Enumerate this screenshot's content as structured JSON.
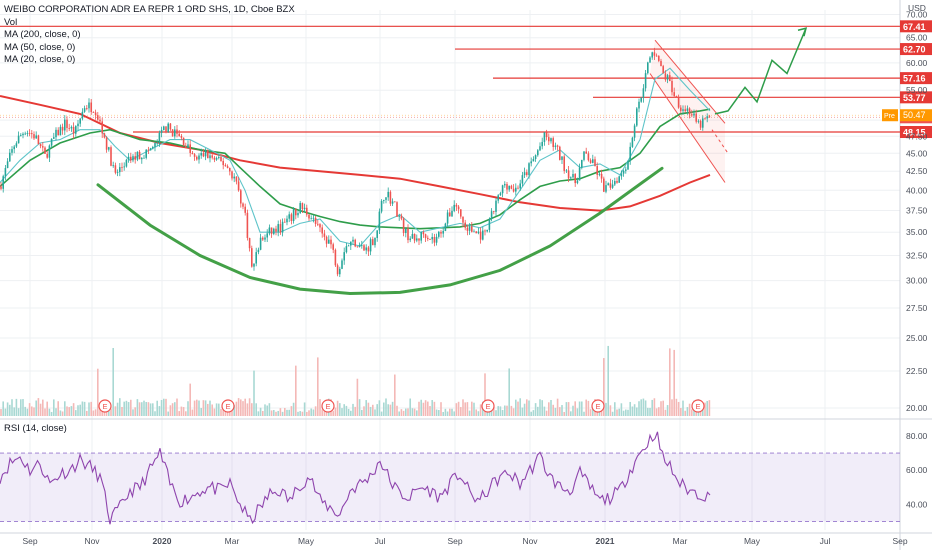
{
  "legend": {
    "symbol": "WEIBO CORPORATION ADR EA REPR 1 ORD SHS, 1D, Cboe BZX",
    "vol": "Vol",
    "ma200": "MA (200, close, 0)",
    "ma50": "MA (50, close, 0)",
    "ma20": "MA (20, close, 0)"
  },
  "rsi_legend": "RSI (14, close)",
  "chart_data": [
    {
      "type": "candlestick",
      "currency": "USD",
      "y_ticks": [
        20,
        22.5,
        25,
        27.5,
        30,
        32.5,
        35,
        37.5,
        40,
        42.5,
        45,
        47.5,
        50,
        55,
        60,
        65,
        70
      ],
      "y_tick_labels": [
        "20.00",
        "22.50",
        "25.00",
        "27.50",
        "30.00",
        "32.50",
        "35.00",
        "37.50",
        "40.00",
        "42.50",
        "45.00",
        "47.50",
        "",
        "55.00",
        "60.00",
        "65.00",
        "70.00"
      ],
      "ylim": [
        19.5,
        71
      ],
      "x_tick_labels": [
        "Sep",
        "Nov",
        "2020",
        "Mar",
        "May",
        "Jul",
        "Sep",
        "Nov",
        "2021",
        "Mar",
        "May",
        "Jul",
        "Sep"
      ],
      "x_tick_bold": [
        "2020",
        "2021"
      ],
      "price_levels": [
        {
          "value": 67.41,
          "label": "67.41"
        },
        {
          "value": 62.7,
          "label": "62.70"
        },
        {
          "value": 57.16,
          "label": "57.16"
        },
        {
          "value": 53.77,
          "label": "53.77"
        },
        {
          "value": 48.15,
          "label": "48.15"
        }
      ],
      "current_price": {
        "value": 50.46,
        "label": "50.46"
      },
      "premarket": {
        "value": 50.47,
        "label": "50.47",
        "tag": "Pre"
      },
      "close_path": [
        [
          0,
          40.5
        ],
        [
          15,
          46.5
        ],
        [
          25,
          48.5
        ],
        [
          35,
          47.5
        ],
        [
          45,
          44.5
        ],
        [
          55,
          47.5
        ],
        [
          65,
          49.5
        ],
        [
          75,
          48
        ],
        [
          85,
          52.5
        ],
        [
          95,
          52
        ],
        [
          105,
          47
        ],
        [
          115,
          42
        ],
        [
          125,
          43.5
        ],
        [
          135,
          44.5
        ],
        [
          145,
          45
        ],
        [
          155,
          46
        ],
        [
          165,
          49
        ],
        [
          175,
          48
        ],
        [
          185,
          46.5
        ],
        [
          195,
          44
        ],
        [
          205,
          45
        ],
        [
          215,
          44
        ],
        [
          225,
          43.5
        ],
        [
          235,
          41.5
        ],
        [
          245,
          37
        ],
        [
          252,
          31
        ],
        [
          260,
          34
        ],
        [
          270,
          35
        ],
        [
          280,
          35.5
        ],
        [
          290,
          36.5
        ],
        [
          300,
          38
        ],
        [
          310,
          37
        ],
        [
          320,
          35
        ],
        [
          330,
          34
        ],
        [
          338,
          31
        ],
        [
          345,
          33.5
        ],
        [
          355,
          34
        ],
        [
          365,
          33
        ],
        [
          375,
          34.5
        ],
        [
          385,
          40
        ],
        [
          395,
          38
        ],
        [
          405,
          35
        ],
        [
          415,
          34
        ],
        [
          425,
          35
        ],
        [
          435,
          34
        ],
        [
          445,
          36
        ],
        [
          455,
          38.5
        ],
        [
          465,
          35.5
        ],
        [
          475,
          35
        ],
        [
          485,
          34.5
        ],
        [
          495,
          38
        ],
        [
          505,
          41
        ],
        [
          515,
          40
        ],
        [
          525,
          42
        ],
        [
          535,
          44.5
        ],
        [
          545,
          47.5
        ],
        [
          555,
          46
        ],
        [
          565,
          43
        ],
        [
          575,
          41
        ],
        [
          585,
          45
        ],
        [
          595,
          43
        ],
        [
          605,
          40
        ],
        [
          612,
          41
        ],
        [
          620,
          42
        ],
        [
          628,
          44
        ],
        [
          635,
          50
        ],
        [
          642,
          55
        ],
        [
          650,
          61
        ],
        [
          656,
          62.5
        ],
        [
          662,
          58
        ],
        [
          668,
          57
        ],
        [
          675,
          54
        ],
        [
          682,
          52
        ],
        [
          690,
          51.5
        ],
        [
          698,
          49
        ],
        [
          705,
          50
        ],
        [
          710,
          50.46
        ]
      ],
      "ma200_path": [
        [
          0,
          54
        ],
        [
          40,
          52.5
        ],
        [
          80,
          51
        ],
        [
          120,
          48
        ],
        [
          160,
          46.5
        ],
        [
          200,
          45.5
        ],
        [
          240,
          44
        ],
        [
          280,
          43
        ],
        [
          320,
          42.5
        ],
        [
          360,
          42
        ],
        [
          400,
          41.5
        ],
        [
          440,
          40.5
        ],
        [
          480,
          39.5
        ],
        [
          520,
          38.5
        ],
        [
          560,
          37.8
        ],
        [
          600,
          37.5
        ],
        [
          630,
          38
        ],
        [
          660,
          39.3
        ],
        [
          690,
          41
        ],
        [
          710,
          42
        ]
      ],
      "ma50_path": [
        [
          0,
          40.5
        ],
        [
          30,
          44
        ],
        [
          60,
          46.5
        ],
        [
          90,
          48
        ],
        [
          110,
          48.5
        ],
        [
          140,
          47
        ],
        [
          170,
          46.5
        ],
        [
          200,
          45.5
        ],
        [
          225,
          45
        ],
        [
          240,
          43
        ],
        [
          260,
          40.5
        ],
        [
          280,
          38.3
        ],
        [
          300,
          37.5
        ],
        [
          320,
          36.8
        ],
        [
          340,
          36.2
        ],
        [
          360,
          35.8
        ],
        [
          380,
          35.6
        ],
        [
          400,
          35.5
        ],
        [
          420,
          35.4
        ],
        [
          440,
          35.5
        ],
        [
          460,
          35.6
        ],
        [
          480,
          36
        ],
        [
          500,
          37
        ],
        [
          520,
          38.8
        ],
        [
          540,
          40.5
        ],
        [
          560,
          41.2
        ],
        [
          580,
          41.5
        ],
        [
          600,
          42.5
        ],
        [
          620,
          43
        ],
        [
          640,
          45
        ],
        [
          660,
          49
        ],
        [
          680,
          51
        ],
        [
          700,
          51.5
        ],
        [
          710,
          51.8
        ]
      ],
      "ma20_path": [
        [
          0,
          41
        ],
        [
          20,
          44
        ],
        [
          40,
          46.5
        ],
        [
          60,
          47
        ],
        [
          80,
          48.5
        ],
        [
          100,
          48.5
        ],
        [
          115,
          46
        ],
        [
          130,
          44
        ],
        [
          150,
          45.5
        ],
        [
          170,
          47
        ],
        [
          190,
          47
        ],
        [
          210,
          45.5
        ],
        [
          230,
          44
        ],
        [
          245,
          40
        ],
        [
          260,
          35
        ],
        [
          280,
          35
        ],
        [
          300,
          36
        ],
        [
          320,
          36.5
        ],
        [
          340,
          34
        ],
        [
          360,
          33.5
        ],
        [
          380,
          36
        ],
        [
          400,
          37
        ],
        [
          420,
          35
        ],
        [
          440,
          35.5
        ],
        [
          460,
          36
        ],
        [
          480,
          35.5
        ],
        [
          500,
          36.5
        ],
        [
          520,
          40
        ],
        [
          540,
          44
        ],
        [
          560,
          45.5
        ],
        [
          580,
          43
        ],
        [
          600,
          43.5
        ],
        [
          620,
          42
        ],
        [
          640,
          47
        ],
        [
          655,
          57
        ],
        [
          670,
          59
        ],
        [
          690,
          55
        ],
        [
          710,
          51.5
        ]
      ],
      "cup_path": [
        [
          98,
          40.7
        ],
        [
          150,
          35.8
        ],
        [
          200,
          32.5
        ],
        [
          250,
          30.3
        ],
        [
          300,
          29.2
        ],
        [
          350,
          28.8
        ],
        [
          400,
          28.9
        ],
        [
          450,
          29.6
        ],
        [
          500,
          31
        ],
        [
          550,
          33.5
        ],
        [
          600,
          37.2
        ],
        [
          640,
          40.8
        ],
        [
          662,
          42.9
        ]
      ],
      "channel_upper": [
        [
          655,
          64.5
        ],
        [
          725,
          49.5
        ]
      ],
      "channel_lower": [
        [
          650,
          58
        ],
        [
          725,
          41
        ]
      ],
      "channel_mid_dashed": [
        [
          712,
          48.5
        ],
        [
          728,
          45
        ]
      ],
      "projection_path": [
        [
          715,
          51
        ],
        [
          728,
          51.5
        ],
        [
          745,
          55.5
        ],
        [
          757,
          53
        ],
        [
          772,
          60.5
        ],
        [
          787,
          58
        ],
        [
          806,
          67
        ]
      ],
      "earnings_marker": "E",
      "earnings_x": [
        105,
        228,
        328,
        488,
        598,
        698
      ]
    },
    {
      "type": "line",
      "name": "RSI (14, close)",
      "y_ticks": [
        40,
        60,
        80
      ],
      "y_tick_labels": [
        "40.00",
        "60.00",
        "80.00"
      ],
      "ylim": [
        25,
        87
      ],
      "band": [
        30,
        70
      ],
      "rsi_path": [
        [
          0,
          56
        ],
        [
          10,
          64
        ],
        [
          20,
          68
        ],
        [
          30,
          60
        ],
        [
          40,
          64
        ],
        [
          50,
          52
        ],
        [
          60,
          58
        ],
        [
          70,
          60
        ],
        [
          80,
          66
        ],
        [
          90,
          62
        ],
        [
          100,
          56
        ],
        [
          105,
          44
        ],
        [
          110,
          31
        ],
        [
          120,
          38
        ],
        [
          130,
          48
        ],
        [
          140,
          50
        ],
        [
          150,
          60
        ],
        [
          160,
          70
        ],
        [
          170,
          52
        ],
        [
          180,
          42
        ],
        [
          190,
          44
        ],
        [
          200,
          48
        ],
        [
          210,
          50
        ],
        [
          220,
          48
        ],
        [
          230,
          52
        ],
        [
          240,
          40
        ],
        [
          250,
          30
        ],
        [
          260,
          38
        ],
        [
          270,
          46
        ],
        [
          280,
          48
        ],
        [
          290,
          42
        ],
        [
          300,
          52
        ],
        [
          310,
          56
        ],
        [
          320,
          42
        ],
        [
          330,
          38
        ],
        [
          340,
          34
        ],
        [
          350,
          48
        ],
        [
          360,
          52
        ],
        [
          370,
          56
        ],
        [
          380,
          66
        ],
        [
          390,
          54
        ],
        [
          400,
          46
        ],
        [
          410,
          44
        ],
        [
          420,
          50
        ],
        [
          430,
          48
        ],
        [
          440,
          44
        ],
        [
          450,
          52
        ],
        [
          460,
          58
        ],
        [
          470,
          46
        ],
        [
          480,
          42
        ],
        [
          490,
          50
        ],
        [
          500,
          56
        ],
        [
          510,
          58
        ],
        [
          520,
          52
        ],
        [
          530,
          60
        ],
        [
          540,
          68
        ],
        [
          550,
          56
        ],
        [
          560,
          50
        ],
        [
          570,
          48
        ],
        [
          580,
          58
        ],
        [
          590,
          50
        ],
        [
          600,
          42
        ],
        [
          610,
          44
        ],
        [
          620,
          48
        ],
        [
          630,
          60
        ],
        [
          640,
          70
        ],
        [
          650,
          78
        ],
        [
          656,
          83
        ],
        [
          662,
          68
        ],
        [
          670,
          62
        ],
        [
          680,
          52
        ],
        [
          690,
          48
        ],
        [
          700,
          46
        ],
        [
          710,
          44
        ]
      ]
    }
  ]
}
